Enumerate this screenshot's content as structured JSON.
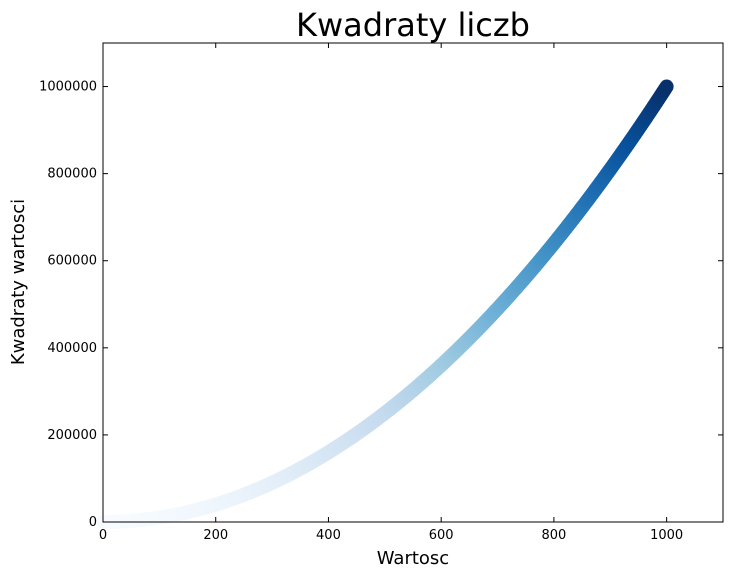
{
  "chart_data": {
    "type": "scatter",
    "title": "Kwadraty liczb",
    "xlabel": "Wartosc",
    "ylabel": "Kwadraty wartosci",
    "xlim": [
      0,
      1100
    ],
    "ylim": [
      0,
      1100000
    ],
    "x_ticks": [
      0,
      200,
      400,
      600,
      800,
      1000
    ],
    "y_ticks": [
      0,
      200000,
      400000,
      600000,
      800000,
      1000000
    ],
    "x_tick_labels": [
      "0",
      "200",
      "400",
      "600",
      "800",
      "1000"
    ],
    "y_tick_labels": [
      "0",
      "200000",
      "400000",
      "600000",
      "800000",
      "1000000"
    ],
    "series": {
      "x_start": 1,
      "x_end": 1000,
      "x_step": 1,
      "y_formula": "x^2",
      "colormap": "Blues",
      "colormap_stops": [
        "#f7fbff",
        "#deebf7",
        "#c6dbef",
        "#9ecae1",
        "#6baed6",
        "#4292c6",
        "#2171b5",
        "#08519c",
        "#08306b"
      ]
    },
    "grid": false
  }
}
